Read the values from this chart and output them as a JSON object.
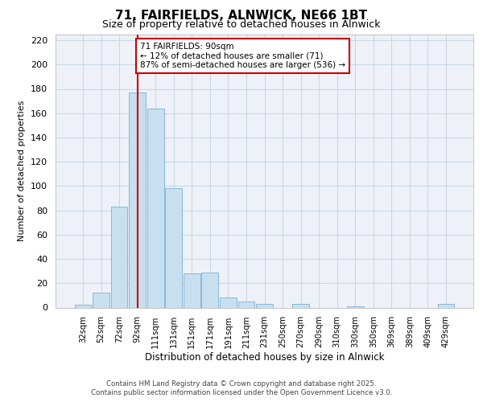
{
  "title": "71, FAIRFIELDS, ALNWICK, NE66 1BT",
  "subtitle": "Size of property relative to detached houses in Alnwick",
  "xlabel": "Distribution of detached houses by size in Alnwick",
  "ylabel": "Number of detached properties",
  "bar_labels": [
    "32sqm",
    "52sqm",
    "72sqm",
    "92sqm",
    "111sqm",
    "131sqm",
    "151sqm",
    "171sqm",
    "191sqm",
    "211sqm",
    "231sqm",
    "250sqm",
    "270sqm",
    "290sqm",
    "310sqm",
    "330sqm",
    "350sqm",
    "369sqm",
    "389sqm",
    "409sqm",
    "429sqm"
  ],
  "bar_values": [
    2,
    12,
    83,
    177,
    164,
    98,
    28,
    29,
    8,
    5,
    3,
    0,
    3,
    0,
    0,
    1,
    0,
    0,
    0,
    0,
    3
  ],
  "bar_color": "#c8dff0",
  "bar_edge_color": "#7ab0d4",
  "vline_x_index": 3,
  "vline_color": "#cc0000",
  "annotation_text": "71 FAIRFIELDS: 90sqm\n← 12% of detached houses are smaller (71)\n87% of semi-detached houses are larger (536) →",
  "annotation_box_color": "#ffffff",
  "annotation_box_edge": "#cc0000",
  "ylim": [
    0,
    225
  ],
  "yticks": [
    0,
    20,
    40,
    60,
    80,
    100,
    120,
    140,
    160,
    180,
    200,
    220
  ],
  "grid_color": "#c8d8e8",
  "plot_bg_color": "#eef2f8",
  "footer_line1": "Contains HM Land Registry data © Crown copyright and database right 2025.",
  "footer_line2": "Contains public sector information licensed under the Open Government Licence v3.0."
}
